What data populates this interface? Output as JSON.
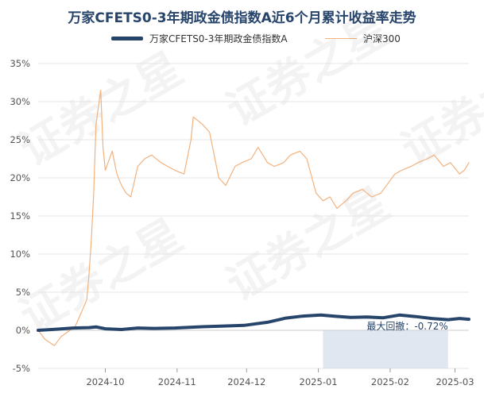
{
  "title": "万家CFETS0-3年期政金债指数A近6个月累计收益率走势",
  "chart_data": {
    "type": "line",
    "title": "万家CFETS0-3年期政金债指数A近6个月累计收益率走势",
    "legend_position": "top-center",
    "grid": true,
    "ylim": [
      -5,
      35
    ],
    "y_ticks": [
      "35%",
      "30%",
      "25%",
      "20%",
      "15%",
      "10%",
      "5%",
      "0%",
      "-5%"
    ],
    "x_ticks": [
      "2024-10",
      "2024-11",
      "2024-12",
      "2025-01",
      "2025-02",
      "2025-03"
    ],
    "x_range": [
      "2024-09-02",
      "2025-03-07"
    ],
    "series": [
      {
        "name": "万家CFETS0-3年期政金债指数A",
        "color": "#27446b",
        "x": [
          "2024-09-02",
          "2024-09-10",
          "2024-09-17",
          "2024-09-24",
          "2024-09-27",
          "2024-10-01",
          "2024-10-08",
          "2024-10-15",
          "2024-10-22",
          "2024-10-31",
          "2024-11-10",
          "2024-11-20",
          "2024-11-30",
          "2024-12-05",
          "2024-12-10",
          "2024-12-18",
          "2024-12-25",
          "2025-01-02",
          "2025-01-08",
          "2025-01-15",
          "2025-01-22",
          "2025-01-29",
          "2025-02-05",
          "2025-02-12",
          "2025-02-19",
          "2025-02-26",
          "2025-03-03",
          "2025-03-07"
        ],
        "values": [
          0.0,
          0.15,
          0.3,
          0.35,
          0.45,
          0.2,
          0.1,
          0.3,
          0.25,
          0.3,
          0.45,
          0.55,
          0.65,
          0.85,
          1.05,
          1.6,
          1.85,
          2.0,
          1.85,
          1.7,
          1.75,
          1.65,
          2.0,
          1.8,
          1.55,
          1.4,
          1.55,
          1.45
        ]
      },
      {
        "name": "沪深300",
        "color": "#f2b27e",
        "x": [
          "2024-09-02",
          "2024-09-05",
          "2024-09-09",
          "2024-09-12",
          "2024-09-18",
          "2024-09-23",
          "2024-09-24",
          "2024-09-25",
          "2024-09-26",
          "2024-09-27",
          "2024-09-29",
          "2024-09-30",
          "2024-10-01",
          "2024-10-04",
          "2024-10-06",
          "2024-10-08",
          "2024-10-10",
          "2024-10-12",
          "2024-10-15",
          "2024-10-18",
          "2024-10-21",
          "2024-10-25",
          "2024-10-28",
          "2024-10-31",
          "2024-11-04",
          "2024-11-07",
          "2024-11-08",
          "2024-11-12",
          "2024-11-15",
          "2024-11-19",
          "2024-11-22",
          "2024-11-26",
          "2024-11-29",
          "2024-12-03",
          "2024-12-06",
          "2024-12-10",
          "2024-12-13",
          "2024-12-17",
          "2024-12-20",
          "2024-12-24",
          "2024-12-27",
          "2024-12-31",
          "2025-01-03",
          "2025-01-06",
          "2025-01-09",
          "2025-01-13",
          "2025-01-16",
          "2025-01-20",
          "2025-01-24",
          "2025-01-28",
          "2025-02-03",
          "2025-02-06",
          "2025-02-10",
          "2025-02-13",
          "2025-02-17",
          "2025-02-20",
          "2025-02-24",
          "2025-02-27",
          "2025-03-03",
          "2025-03-05",
          "2025-03-07"
        ],
        "values": [
          0.0,
          -1.2,
          -2.0,
          -0.8,
          0.5,
          4.0,
          7.5,
          12.0,
          18.0,
          27.0,
          31.5,
          24.0,
          21.0,
          23.5,
          20.5,
          19.0,
          18.0,
          17.5,
          21.5,
          22.5,
          23.0,
          22.0,
          21.5,
          21.0,
          20.5,
          25.0,
          28.0,
          27.0,
          26.0,
          20.0,
          19.0,
          21.5,
          22.0,
          22.5,
          24.0,
          22.0,
          21.5,
          22.0,
          23.0,
          23.5,
          22.5,
          18.0,
          17.0,
          17.5,
          16.0,
          17.0,
          18.0,
          18.5,
          17.5,
          18.0,
          20.5,
          21.0,
          21.5,
          22.0,
          22.5,
          23.0,
          21.5,
          22.0,
          20.5,
          21.0,
          22.0
        ]
      }
    ],
    "annotations": [
      {
        "text": "最大回撤：-0.72%",
        "x_start": "2025-01-03",
        "x_end": "2025-02-26",
        "color": "#c8d4e3"
      }
    ]
  }
}
